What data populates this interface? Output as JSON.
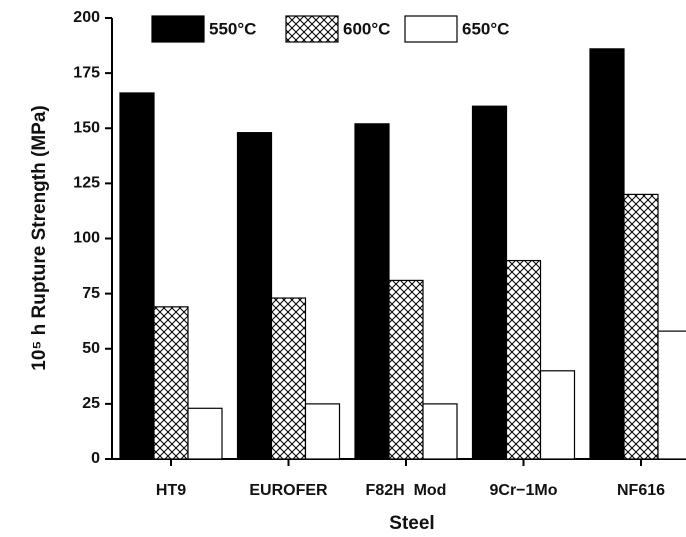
{
  "chart_data": {
    "type": "bar",
    "x_label": "Steel",
    "y_label": "10⁵ h Rupture Strength (MPa)",
    "categories": [
      "HT9",
      "EUROFER",
      "F82H  Mod",
      "9Cr−1Mo",
      "NF616"
    ],
    "series": [
      {
        "name": "550°C",
        "color": "#000000",
        "hatch": false,
        "values": [
          166,
          148,
          152,
          160,
          186
        ]
      },
      {
        "name": "600°C",
        "color": "#ffffff",
        "hatch": true,
        "values": [
          69,
          73,
          81,
          90,
          120
        ]
      },
      {
        "name": "650°C",
        "color": "#ffffff",
        "hatch": false,
        "values": [
          23,
          25,
          25,
          40,
          58
        ]
      }
    ],
    "ylim": [
      0,
      200
    ],
    "yticks": [
      0,
      25,
      50,
      75,
      100,
      125,
      150,
      175,
      200
    ],
    "grid": false
  }
}
